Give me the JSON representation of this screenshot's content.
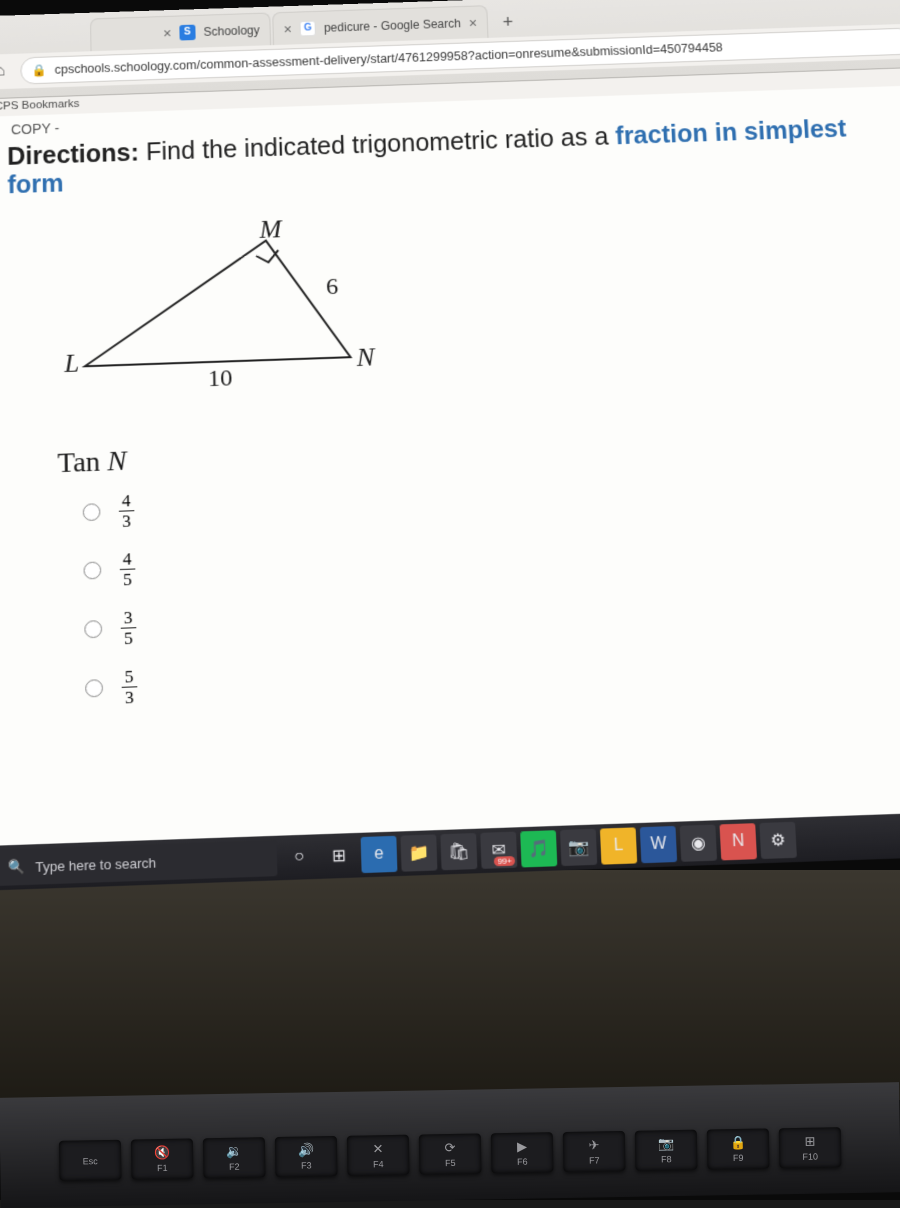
{
  "browser": {
    "tabs": [
      {
        "favicon_bg": "#2a7de1",
        "favicon_letter": "S",
        "title": "Schoology"
      },
      {
        "favicon_bg": "#ffffff",
        "favicon_letter": "G",
        "favicon_color": "#4285f4",
        "title": "pedicure - Google Search"
      }
    ],
    "new_tab_label": "+",
    "url": "cpschools.schoology.com/common-assessment-delivery/start/4761299958?action=onresume&submissionId=450794458",
    "bookmarks_label": "CPS Bookmarks"
  },
  "page": {
    "copy_label": "COPY -",
    "directions_label": "Directions:",
    "directions_text": "Find the indicated trigonometric ratio as a ",
    "directions_accent": "fraction in simplest form",
    "triangle": {
      "vertex_top": "M",
      "vertex_left": "L",
      "vertex_right": "N",
      "side_right": "6",
      "side_bottom": "10",
      "stroke": "#222222",
      "stroke_width": 2
    },
    "question": "Tan N",
    "options": [
      {
        "num": "4",
        "den": "3"
      },
      {
        "num": "4",
        "den": "5"
      },
      {
        "num": "3",
        "den": "5"
      },
      {
        "num": "5",
        "den": "3"
      }
    ]
  },
  "taskbar": {
    "search_placeholder": "Type here to search",
    "icons": [
      {
        "name": "cortana-icon",
        "glyph": "○",
        "bg": "transparent"
      },
      {
        "name": "task-view-icon",
        "glyph": "⊞",
        "bg": "transparent"
      },
      {
        "name": "edge-icon",
        "glyph": "e",
        "bg": "#2b6cb0"
      },
      {
        "name": "files-icon",
        "glyph": "📁",
        "bg": "#3a3a40"
      },
      {
        "name": "store-icon",
        "glyph": "🛍",
        "bg": "#3a3a40"
      },
      {
        "name": "mail-icon",
        "glyph": "✉",
        "bg": "#3a3a40",
        "badge": "99+"
      },
      {
        "name": "music-icon",
        "glyph": "🎵",
        "bg": "#1db954"
      },
      {
        "name": "photos-icon",
        "glyph": "📷",
        "bg": "#3a3a40"
      },
      {
        "name": "app-l-icon",
        "glyph": "L",
        "bg": "#f0b429"
      },
      {
        "name": "word-icon",
        "glyph": "W",
        "bg": "#2b579a"
      },
      {
        "name": "chrome-icon",
        "glyph": "◉",
        "bg": "#3a3a40"
      },
      {
        "name": "app-n-icon",
        "glyph": "N",
        "bg": "#d9534f"
      },
      {
        "name": "settings-icon",
        "glyph": "⚙",
        "bg": "#3a3a40"
      }
    ]
  },
  "keyboard": {
    "keys": [
      {
        "label": "Esc",
        "glyph": ""
      },
      {
        "label": "F1",
        "glyph": "🔇"
      },
      {
        "label": "F2",
        "glyph": "🔉"
      },
      {
        "label": "F3",
        "glyph": "🔊"
      },
      {
        "label": "F4",
        "glyph": "✕"
      },
      {
        "label": "F5",
        "glyph": "⟳"
      },
      {
        "label": "F6",
        "glyph": "▶"
      },
      {
        "label": "F7",
        "glyph": "✈"
      },
      {
        "label": "F8",
        "glyph": "📷"
      },
      {
        "label": "F9",
        "glyph": "🔒"
      },
      {
        "label": "F10",
        "glyph": "⊞"
      }
    ]
  }
}
